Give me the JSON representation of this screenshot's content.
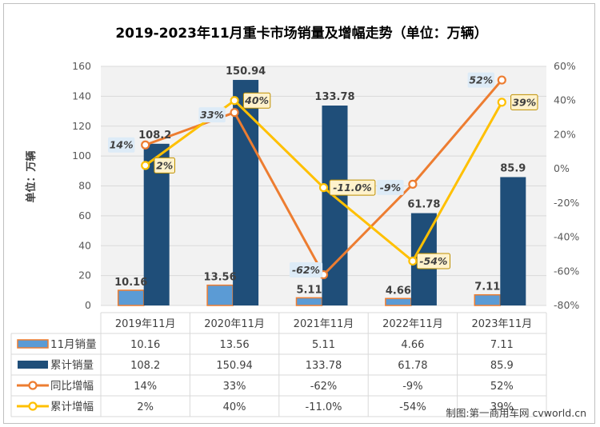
{
  "chart_data": {
    "type": "bar",
    "title": "2019-2023年11月重卡市场销量及增幅走势（单位：万辆）",
    "ylabel": "单位：万辆",
    "ylim": [
      0,
      160
    ],
    "y_ticks": [
      "0",
      "20",
      "40",
      "60",
      "80",
      "100",
      "120",
      "140",
      "160"
    ],
    "y2lim": [
      -80,
      60
    ],
    "y2_ticks": [
      "-80%",
      "-60%",
      "-40%",
      "-20%",
      "0%",
      "20%",
      "40%",
      "60%"
    ],
    "categories": [
      "2019年11月",
      "2020年11月",
      "2021年11月",
      "2022年11月",
      "2023年11月"
    ],
    "series": [
      {
        "name": "11月销量",
        "kind": "bar",
        "axis": "left",
        "values": [
          10.16,
          13.56,
          5.11,
          4.66,
          7.11
        ],
        "labels": [
          "10.16",
          "13.56",
          "5.11",
          "4.66",
          "7.11"
        ],
        "table": [
          "10.16",
          "13.56",
          "5.11",
          "4.66",
          "7.11"
        ]
      },
      {
        "name": "累计销量",
        "kind": "bar",
        "axis": "left",
        "values": [
          108.2,
          150.94,
          133.78,
          61.78,
          85.9
        ],
        "labels": [
          "108.2",
          "150.94",
          "133.78",
          "61.78",
          "85.9"
        ],
        "table": [
          "108.2",
          "150.94",
          "133.78",
          "61.78",
          "85.9"
        ]
      },
      {
        "name": "同比增幅",
        "kind": "line",
        "axis": "right",
        "values": [
          14,
          33,
          -62,
          -9,
          52
        ],
        "labels": [
          "14%",
          "33%",
          "-62%",
          "-9%",
          "52%"
        ],
        "table": [
          "14%",
          "33%",
          "-62%",
          "-9%",
          "52%"
        ]
      },
      {
        "name": "累计增幅",
        "kind": "line",
        "axis": "right",
        "values": [
          2,
          40,
          -11,
          -54,
          39
        ],
        "labels": [
          "2%",
          "40%",
          "-11.0%",
          "-54%",
          "39%"
        ],
        "table": [
          "2%",
          "40%",
          "-11.0%",
          "-54%",
          "39%"
        ]
      }
    ],
    "colors": {
      "bar1": "#5B9BD5",
      "bar1_border": "#ED7D31",
      "bar2": "#1F4E79",
      "line1": "#ED7D31",
      "line2": "#FFC000",
      "label1_bg": "#DDEBF7",
      "label2_bg": "#FFF2CC",
      "label2_border": "#BF9000"
    }
  },
  "footer": {
    "credit": "制图:第一商用车网 cvworld.cn"
  }
}
